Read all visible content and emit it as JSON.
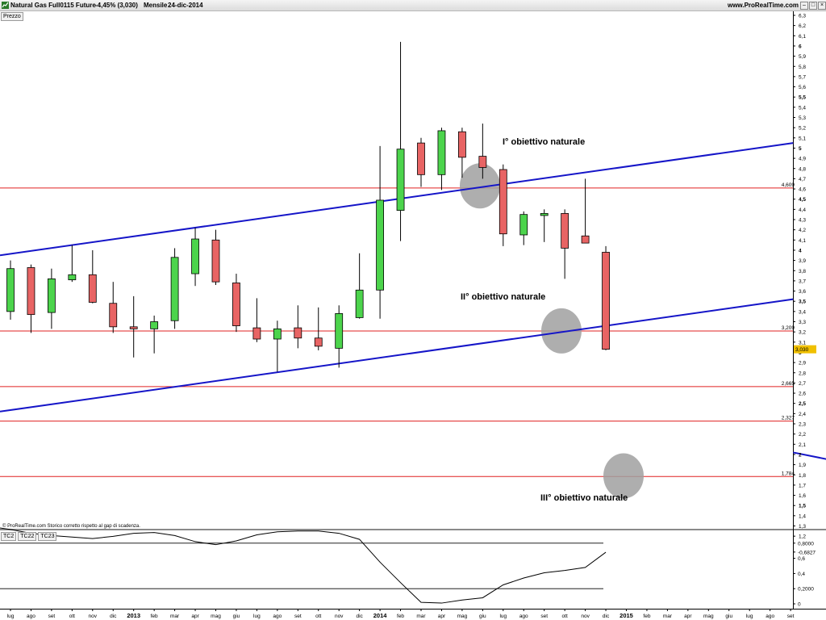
{
  "titlebar": {
    "instrument": "Natural Gas Full0115 Future",
    "change": "-4,45% (3,030)",
    "period": "Mensile",
    "date": "24-dic-2014",
    "website": "www.ProRealTime.com"
  },
  "panels": {
    "price_label": "Prezzo",
    "footer_note": "© ProRealTime.com  Storico corretto rispetto al gap di scadenza.",
    "indicator_tabs": [
      "TC2",
      "TC22",
      "TC23"
    ]
  },
  "colors": {
    "up": "#4cd44c",
    "down": "#e86464",
    "channel": "#1515c8",
    "level": "#e02020",
    "circle": "#a0a0a0",
    "price_badge": "#f0c000"
  },
  "chart_data": [
    {
      "type": "candlestick",
      "title": "Natural Gas Full0115 Future",
      "x_labels": [
        "lug",
        "ago",
        "set",
        "ott",
        "nov",
        "dic",
        "2013",
        "feb",
        "mar",
        "apr",
        "mag",
        "giu",
        "lug",
        "ago",
        "set",
        "ott",
        "nov",
        "dic",
        "2014",
        "feb",
        "mar",
        "apr",
        "mag",
        "giu",
        "lug",
        "ago",
        "set",
        "ott",
        "nov",
        "dic",
        "2015",
        "feb",
        "mar",
        "apr",
        "mag",
        "giu",
        "lug",
        "ago",
        "set"
      ],
      "candles": [
        {
          "o": 3.4,
          "h": 3.9,
          "l": 3.32,
          "c": 3.82
        },
        {
          "o": 3.83,
          "h": 3.86,
          "l": 3.19,
          "c": 3.37
        },
        {
          "o": 3.39,
          "h": 3.82,
          "l": 3.23,
          "c": 3.72
        },
        {
          "o": 3.71,
          "h": 4.05,
          "l": 3.69,
          "c": 3.76
        },
        {
          "o": 3.76,
          "h": 4.0,
          "l": 3.48,
          "c": 3.49
        },
        {
          "o": 3.48,
          "h": 3.69,
          "l": 3.19,
          "c": 3.25
        },
        {
          "o": 3.25,
          "h": 3.55,
          "l": 2.95,
          "c": 3.23
        },
        {
          "o": 3.23,
          "h": 3.36,
          "l": 2.99,
          "c": 3.3
        },
        {
          "o": 3.31,
          "h": 4.02,
          "l": 3.23,
          "c": 3.93
        },
        {
          "o": 3.77,
          "h": 4.22,
          "l": 3.65,
          "c": 4.11
        },
        {
          "o": 4.1,
          "h": 4.2,
          "l": 3.66,
          "c": 3.69
        },
        {
          "o": 3.68,
          "h": 3.77,
          "l": 3.2,
          "c": 3.26
        },
        {
          "o": 3.24,
          "h": 3.53,
          "l": 3.1,
          "c": 3.13
        },
        {
          "o": 3.13,
          "h": 3.31,
          "l": 2.81,
          "c": 3.23
        },
        {
          "o": 3.24,
          "h": 3.46,
          "l": 3.04,
          "c": 3.14
        },
        {
          "o": 3.14,
          "h": 3.44,
          "l": 3.02,
          "c": 3.06
        },
        {
          "o": 3.04,
          "h": 3.46,
          "l": 2.85,
          "c": 3.38
        },
        {
          "o": 3.34,
          "h": 3.97,
          "l": 3.33,
          "c": 3.61
        },
        {
          "o": 3.61,
          "h": 5.02,
          "l": 3.33,
          "c": 4.49
        },
        {
          "o": 4.39,
          "h": 6.04,
          "l": 4.09,
          "c": 4.99
        },
        {
          "o": 5.05,
          "h": 5.1,
          "l": 4.62,
          "c": 4.74
        },
        {
          "o": 4.74,
          "h": 5.2,
          "l": 4.59,
          "c": 5.17
        },
        {
          "o": 5.16,
          "h": 5.2,
          "l": 4.71,
          "c": 4.91
        },
        {
          "o": 4.92,
          "h": 5.24,
          "l": 4.7,
          "c": 4.81
        },
        {
          "o": 4.79,
          "h": 4.84,
          "l": 4.04,
          "c": 4.16
        },
        {
          "o": 4.15,
          "h": 4.38,
          "l": 4.05,
          "c": 4.35
        },
        {
          "o": 4.34,
          "h": 4.4,
          "l": 4.08,
          "c": 4.36
        },
        {
          "o": 4.36,
          "h": 4.4,
          "l": 3.72,
          "c": 4.02
        },
        {
          "o": 4.14,
          "h": 4.7,
          "l": 4.08,
          "c": 4.07
        },
        {
          "o": 3.98,
          "h": 4.04,
          "l": 3.02,
          "c": 3.03
        }
      ],
      "y_axis_ticks": [
        "6,3",
        "6,2",
        "6,1",
        "6",
        "5,9",
        "5,8",
        "5,7",
        "5,6",
        "5,5",
        "5,4",
        "5,3",
        "5,2",
        "5,1",
        "5",
        "4,9",
        "4,8",
        "4,7",
        "4,6",
        "4,5",
        "4,4",
        "4,3",
        "4,2",
        "4,1",
        "4",
        "3,9",
        "3,8",
        "3,7",
        "3,6",
        "3,5",
        "3,4",
        "3,3",
        "3,2",
        "3,1",
        "3",
        "2,9",
        "2,8",
        "2,7",
        "2,6",
        "2,5",
        "2,4",
        "2,3",
        "2,2",
        "2,1",
        "2",
        "1,9",
        "1,8",
        "1,7",
        "1,6",
        "1,5",
        "1,4",
        "1,3",
        "1,2"
      ],
      "ylim": [
        1.15,
        6.35
      ],
      "horizontal_levels": [
        {
          "value": 4.609,
          "label": "4,609"
        },
        {
          "value": 3.209,
          "label": "3,209"
        },
        {
          "value": 2.665,
          "label": "2,665"
        },
        {
          "value": 2.327,
          "label": "2,327"
        },
        {
          "value": 1.784,
          "label": "1,784"
        }
      ],
      "last_price": {
        "value": 3.03,
        "label": "3,030"
      },
      "annotations": [
        "I° obiettivo naturale",
        "II° obiettivo naturale",
        "III° obiettivo naturale"
      ]
    },
    {
      "type": "line",
      "series_name": "TC2",
      "values": [
        0.98,
        0.93,
        0.9,
        0.88,
        0.86,
        0.89,
        0.93,
        0.94,
        0.9,
        0.82,
        0.78,
        0.83,
        0.91,
        0.95,
        0.96,
        0.96,
        0.93,
        0.85,
        0.55,
        0.28,
        0.02,
        0.01,
        0.05,
        0.08,
        0.25,
        0.34,
        0.41,
        0.44,
        0.48,
        0.68
      ],
      "y_axis_ticks": [
        "0,8000",
        "0,6827",
        "0,6",
        "0,4",
        "0,2000",
        "0"
      ],
      "levels": [
        0.8,
        0.2
      ],
      "last_value_label": "0,6827",
      "ylim": [
        0,
        1
      ]
    }
  ]
}
